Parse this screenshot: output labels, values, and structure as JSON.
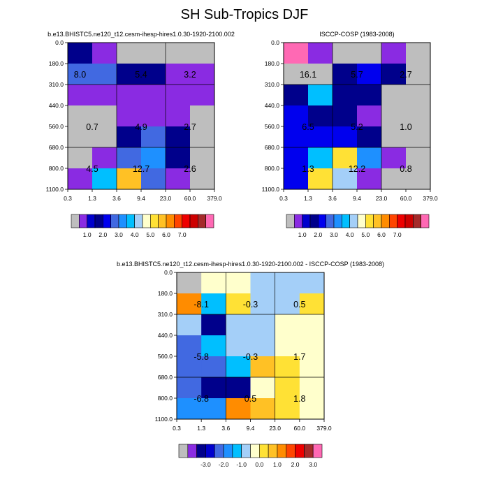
{
  "suptitle": "SH Sub-Tropics DJF",
  "colors": {
    "palette_abs": [
      "#bebebe",
      "#8a2be2",
      "#0000cd",
      "#00008b",
      "#0000ee",
      "#4169e1",
      "#1e90ff",
      "#00bfff",
      "#a4cff8",
      "#ffffcc",
      "#ffe135",
      "#ffc125",
      "#ff8c00",
      "#ff4500",
      "#ee0000",
      "#cd0000",
      "#a52a2a",
      "#ff69b4"
    ],
    "palette_diff": [
      "#bebebe",
      "#8a2be2",
      "#00008b",
      "#0000cd",
      "#4169e1",
      "#1e90ff",
      "#00bfff",
      "#a4cff8",
      "#ffffcc",
      "#ffe135",
      "#ffc125",
      "#ff8c00",
      "#ff4500",
      "#ee0000",
      "#a52a2a",
      "#ff69b4"
    ]
  },
  "chart_data": [
    {
      "type": "heatmap",
      "title": "b.e13.BHISTC5.ne120_t12.cesm-ihesp-hires1.0.30-1920-2100.002",
      "x_ticks": [
        "0.3",
        "1.3",
        "3.6",
        "9.4",
        "23.0",
        "60.0",
        "379.0"
      ],
      "y_ticks": [
        "0.0",
        "180.0",
        "310.0",
        "440.0",
        "560.0",
        "680.0",
        "800.0",
        "1100.0"
      ],
      "colorbar_labels": [
        "1.0",
        "2.0",
        "3.0",
        "4.0",
        "5.0",
        "6.0",
        "7.0"
      ],
      "cells": [
        [
          3,
          1,
          0,
          0,
          0,
          0
        ],
        [
          5,
          5,
          3,
          3,
          1,
          1
        ],
        [
          1,
          1,
          1,
          1,
          1,
          1
        ],
        [
          0,
          0,
          1,
          1,
          1,
          0
        ],
        [
          0,
          0,
          3,
          5,
          3,
          0
        ],
        [
          0,
          1,
          5,
          6,
          3,
          0
        ],
        [
          1,
          7,
          11,
          5,
          1,
          0
        ]
      ],
      "annotations": [
        {
          "text": "8.0",
          "col": 0.5,
          "row": 1.5
        },
        {
          "text": "5.4",
          "col": 3.0,
          "row": 1.5
        },
        {
          "text": "3.2",
          "col": 5.0,
          "row": 1.5
        },
        {
          "text": "0.7",
          "col": 1.0,
          "row": 4.0
        },
        {
          "text": "4.9",
          "col": 3.0,
          "row": 4.0
        },
        {
          "text": "2.7",
          "col": 5.0,
          "row": 4.0
        },
        {
          "text": "4.5",
          "col": 1.0,
          "row": 6.0
        },
        {
          "text": "12.7",
          "col": 3.0,
          "row": 6.0
        },
        {
          "text": "2.6",
          "col": 5.0,
          "row": 6.0
        }
      ]
    },
    {
      "type": "heatmap",
      "title": "ISCCP-COSP (1983-2008)",
      "x_ticks": [
        "0.3",
        "1.3",
        "3.6",
        "9.4",
        "23.0",
        "60.0",
        "379.0"
      ],
      "y_ticks": [
        "0.0",
        "180.0",
        "310.0",
        "440.0",
        "560.0",
        "680.0",
        "800.0",
        "1100.0"
      ],
      "colorbar_labels": [
        "1.0",
        "2.0",
        "3.0",
        "4.0",
        "5.0",
        "6.0",
        "7.0"
      ],
      "cells": [
        [
          17,
          1,
          0,
          0,
          1,
          0
        ],
        [
          0,
          0,
          3,
          4,
          3,
          0
        ],
        [
          3,
          7,
          3,
          3,
          0,
          0
        ],
        [
          4,
          3,
          3,
          1,
          0,
          0
        ],
        [
          4,
          4,
          4,
          3,
          0,
          0
        ],
        [
          4,
          7,
          10,
          6,
          1,
          0
        ],
        [
          4,
          10,
          8,
          1,
          0,
          0
        ]
      ],
      "annotations": [
        {
          "text": "16.1",
          "col": 1.0,
          "row": 1.5
        },
        {
          "text": "5.7",
          "col": 3.0,
          "row": 1.5
        },
        {
          "text": "2.7",
          "col": 5.0,
          "row": 1.5
        },
        {
          "text": "6.5",
          "col": 1.0,
          "row": 4.0
        },
        {
          "text": "5.2",
          "col": 3.0,
          "row": 4.0
        },
        {
          "text": "1.0",
          "col": 5.0,
          "row": 4.0
        },
        {
          "text": "1.3",
          "col": 1.0,
          "row": 6.0
        },
        {
          "text": "12.2",
          "col": 3.0,
          "row": 6.0
        },
        {
          "text": "0.8",
          "col": 5.0,
          "row": 6.0
        }
      ]
    },
    {
      "type": "heatmap",
      "title": "b.e13.BHISTC5.ne120_t12.cesm-ihesp-hires1.0.30-1920-2100.002 - ISCCP-COSP (1983-2008)",
      "x_ticks": [
        "0.3",
        "1.3",
        "3.6",
        "9.4",
        "23.0",
        "60.0",
        "379.0"
      ],
      "y_ticks": [
        "0.0",
        "180.0",
        "310.0",
        "440.0",
        "560.0",
        "680.0",
        "800.0",
        "1100.0"
      ],
      "colorbar_labels": [
        "-3.0",
        "-2.0",
        "-1.0",
        "0.0",
        "1.0",
        "2.0",
        "3.0"
      ],
      "cells": [
        [
          0,
          8,
          8,
          7,
          7,
          7
        ],
        [
          11,
          6,
          9,
          7,
          7,
          9
        ],
        [
          7,
          2,
          7,
          7,
          8,
          8
        ],
        [
          4,
          6,
          7,
          7,
          8,
          8
        ],
        [
          4,
          4,
          6,
          10,
          9,
          8
        ],
        [
          4,
          2,
          2,
          8,
          9,
          8
        ],
        [
          5,
          5,
          11,
          10,
          9,
          8
        ]
      ],
      "annotations": [
        {
          "text": "-8.1",
          "col": 1.0,
          "row": 1.5
        },
        {
          "text": "-0.3",
          "col": 3.0,
          "row": 1.5
        },
        {
          "text": "0.5",
          "col": 5.0,
          "row": 1.5
        },
        {
          "text": "-5.8",
          "col": 1.0,
          "row": 4.0
        },
        {
          "text": "-0.3",
          "col": 3.0,
          "row": 4.0
        },
        {
          "text": "1.7",
          "col": 5.0,
          "row": 4.0
        },
        {
          "text": "-6.8",
          "col": 1.0,
          "row": 6.0
        },
        {
          "text": "0.5",
          "col": 3.0,
          "row": 6.0
        },
        {
          "text": "1.8",
          "col": 5.0,
          "row": 6.0
        }
      ]
    }
  ]
}
